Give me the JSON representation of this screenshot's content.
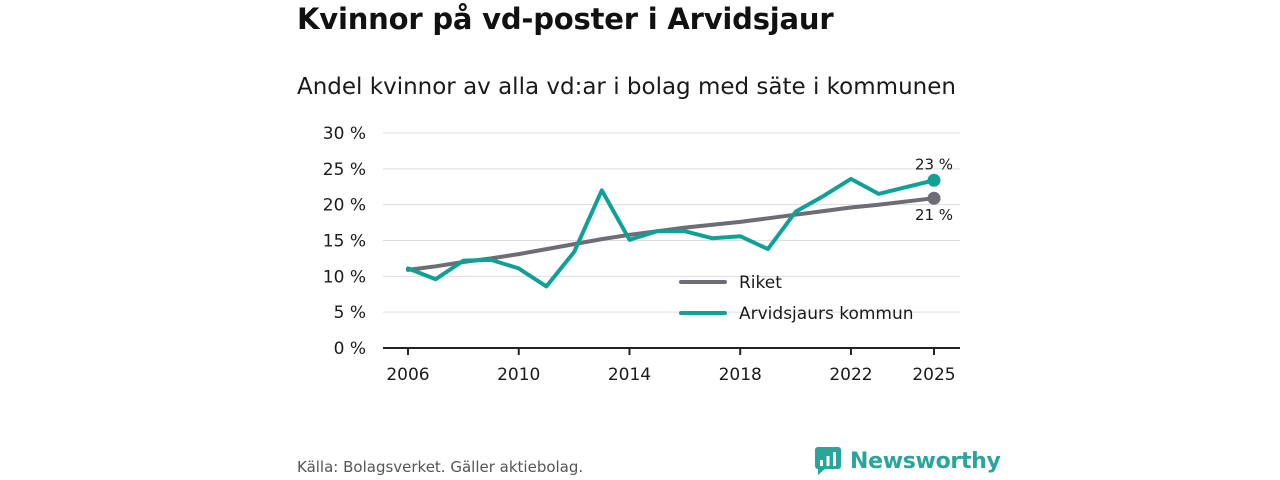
{
  "header": {
    "title": "Kvinnor på vd-poster i Arvidsjaur",
    "subtitle": "Andel kvinnor av alla vd:ar i bolag med säte i kommunen"
  },
  "footer": {
    "source": "Källa: Bolagsverket. Gäller aktiebolag.",
    "brand": "Newsworthy",
    "brand_icon": "newsworthy-logo-icon"
  },
  "colors": {
    "riket": "#6e6c74",
    "kommun": "#10a196",
    "grid": "#dddddd",
    "brand": "#2aa59a"
  },
  "chart_data": {
    "type": "line",
    "title": "Andel kvinnor av alla vd:ar i bolag med säte i kommunen",
    "xlabel": "",
    "ylabel": "",
    "x": [
      2006,
      2007,
      2008,
      2009,
      2010,
      2011,
      2012,
      2013,
      2014,
      2015,
      2016,
      2017,
      2018,
      2019,
      2020,
      2021,
      2022,
      2023,
      2025
    ],
    "xlim": [
      2006,
      2025
    ],
    "ylim": [
      0,
      30
    ],
    "x_ticks": [
      "2006",
      "2010",
      "2014",
      "2018",
      "2022",
      "2025"
    ],
    "y_ticks": [
      "0 %",
      "5 %",
      "10 %",
      "15 %",
      "20 %",
      "25 %",
      "30 %"
    ],
    "grid": true,
    "legend_position": "bottom-right",
    "series": [
      {
        "name": "Riket",
        "values": [
          10.9,
          11.4,
          12.0,
          12.5,
          13.1,
          13.8,
          14.5,
          15.2,
          15.8,
          16.3,
          16.8,
          17.2,
          17.6,
          18.1,
          18.6,
          19.1,
          19.6,
          20.0,
          20.9
        ],
        "end_label": "21 %"
      },
      {
        "name": "Arvidsjaurs kommun",
        "values": [
          11.1,
          9.6,
          12.2,
          12.3,
          11.1,
          8.6,
          13.4,
          22.0,
          15.1,
          16.3,
          16.3,
          15.3,
          15.6,
          13.8,
          19.0,
          21.2,
          23.6,
          21.5,
          23.4
        ],
        "end_label": "23 %"
      }
    ]
  }
}
